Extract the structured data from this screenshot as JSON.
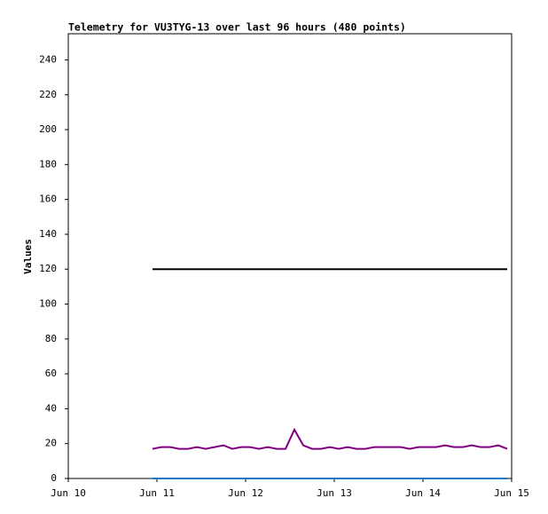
{
  "chart_data": {
    "type": "line",
    "title": "Telemetry for VU3TYG-13 over last 96 hours (480 points)",
    "y_label": "Values",
    "xlim": [
      10,
      15
    ],
    "xticks": [
      {
        "value": 10,
        "label": "Jun 10"
      },
      {
        "value": 11,
        "label": "Jun 11"
      },
      {
        "value": 12,
        "label": "Jun 12"
      },
      {
        "value": 13,
        "label": "Jun 13"
      },
      {
        "value": 14,
        "label": "Jun 14"
      },
      {
        "value": 15,
        "label": "Jun 15"
      }
    ],
    "ylim": [
      0,
      255
    ],
    "yticks": [
      0,
      20,
      40,
      60,
      80,
      100,
      120,
      140,
      160,
      180,
      200,
      220,
      240
    ],
    "grid": false,
    "series": [
      {
        "color": "#000000",
        "x": [
          10.95,
          14.95
        ],
        "values": [
          120,
          120
        ]
      },
      {
        "color": "#800080",
        "x": [
          10.95,
          11.05,
          11.15,
          11.25,
          11.35,
          11.45,
          11.55,
          11.65,
          11.75,
          11.85,
          11.95,
          12.05,
          12.15,
          12.25,
          12.35,
          12.45,
          12.55,
          12.65,
          12.75,
          12.85,
          12.95,
          13.05,
          13.15,
          13.25,
          13.35,
          13.45,
          13.55,
          13.65,
          13.75,
          13.85,
          13.95,
          14.05,
          14.15,
          14.25,
          14.35,
          14.45,
          14.55,
          14.65,
          14.75,
          14.85,
          14.95
        ],
        "values": [
          17,
          18,
          18,
          17,
          17,
          18,
          17,
          18,
          19,
          17,
          18,
          18,
          17,
          18,
          17,
          17,
          28,
          19,
          17,
          17,
          18,
          17,
          18,
          17,
          17,
          18,
          18,
          18,
          18,
          17,
          18,
          18,
          18,
          19,
          18,
          18,
          19,
          18,
          18,
          19,
          17
        ]
      },
      {
        "color": "#1f77c8",
        "x": [
          10.95,
          14.95
        ],
        "values": [
          0,
          0
        ]
      }
    ]
  }
}
